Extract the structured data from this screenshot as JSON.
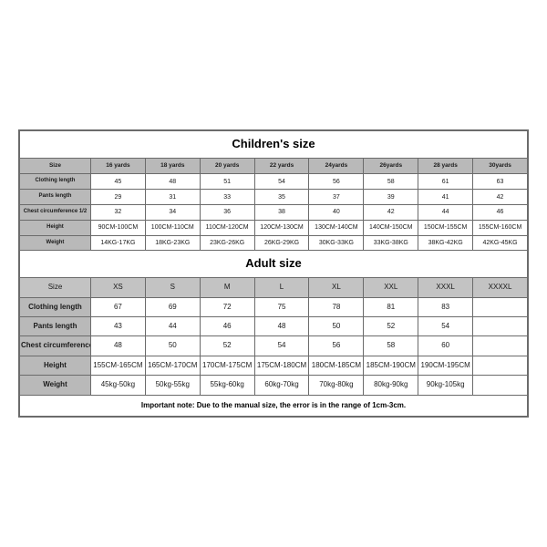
{
  "children": {
    "title": "Children's size",
    "row_labels": [
      "Size",
      "Clothing length",
      "Pants length",
      "Chest circumference 1/2",
      "Height",
      "Weight"
    ],
    "columns": [
      "16 yards",
      "18 yards",
      "20 yards",
      "22 yards",
      "24yards",
      "26yards",
      "28 yards",
      "30yards"
    ],
    "rows": {
      "clothing_length": [
        "45",
        "48",
        "51",
        "54",
        "56",
        "58",
        "61",
        "63"
      ],
      "pants_length": [
        "29",
        "31",
        "33",
        "35",
        "37",
        "39",
        "41",
        "42"
      ],
      "chest": [
        "32",
        "34",
        "36",
        "38",
        "40",
        "42",
        "44",
        "46"
      ],
      "height": [
        "90CM-100CM",
        "100CM-110CM",
        "110CM-120CM",
        "120CM-130CM",
        "130CM-140CM",
        "140CM-150CM",
        "150CM-155CM",
        "155CM-160CM"
      ],
      "weight": [
        "14KG-17KG",
        "18KG-23KG",
        "23KG-26KG",
        "26KG-29KG",
        "30KG-33KG",
        "33KG-38KG",
        "38KG-42KG",
        "42KG-45KG"
      ]
    }
  },
  "adult": {
    "title": "Adult size",
    "row_labels": [
      "Size",
      "Clothing length",
      "Pants length",
      "Chest circumference 1/2",
      "Height",
      "Weight"
    ],
    "columns": [
      "XS",
      "S",
      "M",
      "L",
      "XL",
      "XXL",
      "XXXL",
      "XXXXL"
    ],
    "rows": {
      "clothing_length": [
        "67",
        "69",
        "72",
        "75",
        "78",
        "81",
        "83",
        ""
      ],
      "pants_length": [
        "43",
        "44",
        "46",
        "48",
        "50",
        "52",
        "54",
        ""
      ],
      "chest": [
        "48",
        "50",
        "52",
        "54",
        "56",
        "58",
        "60",
        ""
      ],
      "height": [
        "155CM-165CM",
        "165CM-170CM",
        "170CM-175CM",
        "175CM-180CM",
        "180CM-185CM",
        "185CM-190CM",
        "190CM-195CM",
        ""
      ],
      "weight": [
        "45kg-50kg",
        "50kg-55kg",
        "55kg-60kg",
        "60kg-70kg",
        "70kg-80kg",
        "80kg-90kg",
        "90kg-105kg",
        ""
      ]
    }
  },
  "note": "Important note: Due to the manual size, the error is in the range of 1cm-3cm."
}
